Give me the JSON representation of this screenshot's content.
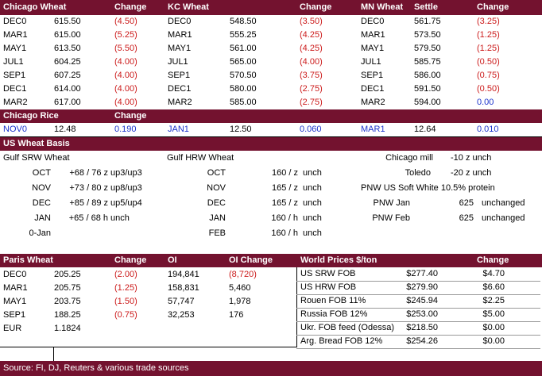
{
  "futures": {
    "headers": [
      "Chicago Wheat",
      "Change",
      "KC Wheat",
      "Change",
      "MN Wheat",
      "Settle",
      "Change"
    ],
    "rows": [
      {
        "cm": "DEC0",
        "cs": "615.50",
        "cc": "(4.50)",
        "km": "DEC0",
        "ks": "548.50",
        "kc": "(3.50)",
        "mm": "DEC0",
        "ms": "561.75",
        "mc": "(3.25)"
      },
      {
        "cm": "MAR1",
        "cs": "615.00",
        "cc": "(5.25)",
        "km": "MAR1",
        "ks": "555.25",
        "kc": "(4.25)",
        "mm": "MAR1",
        "ms": "573.50",
        "mc": "(1.25)"
      },
      {
        "cm": "MAY1",
        "cs": "613.50",
        "cc": "(5.50)",
        "km": "MAY1",
        "ks": "561.00",
        "kc": "(4.25)",
        "mm": "MAY1",
        "ms": "579.50",
        "mc": "(1.25)"
      },
      {
        "cm": "JUL1",
        "cs": "604.25",
        "cc": "(4.00)",
        "km": "JUL1",
        "ks": "565.00",
        "kc": "(4.00)",
        "mm": "JUL1",
        "ms": "585.75",
        "mc": "(0.50)"
      },
      {
        "cm": "SEP1",
        "cs": "607.25",
        "cc": "(4.00)",
        "km": "SEP1",
        "ks": "570.50",
        "kc": "(3.75)",
        "mm": "SEP1",
        "ms": "586.00",
        "mc": "(0.75)"
      },
      {
        "cm": "DEC1",
        "cs": "614.00",
        "cc": "(4.00)",
        "km": "DEC1",
        "ks": "580.00",
        "kc": "(2.75)",
        "mm": "DEC1",
        "ms": "591.50",
        "mc": "(0.50)"
      },
      {
        "cm": "MAR2",
        "cs": "617.00",
        "cc": "(4.00)",
        "km": "MAR2",
        "ks": "585.00",
        "kc": "(2.75)",
        "mm": "MAR2",
        "ms": "594.00",
        "mc": "0.00"
      }
    ]
  },
  "rice": {
    "title": "Chicago Rice",
    "change_header": "Change",
    "cells": [
      "NOV0",
      "12.48",
      "0.190",
      "JAN1",
      "12.50",
      "0.060",
      "MAR1",
      "12.64",
      "0.010"
    ]
  },
  "basis": {
    "title": "US Wheat Basis",
    "gulf_srw_title": "Gulf SRW Wheat",
    "gulf_hrw_title": "Gulf HRW Wheat",
    "srw": [
      {
        "month": "OCT",
        "value": "+68 / 76 z",
        "note": "up3/up3"
      },
      {
        "month": "NOV",
        "value": "+73 / 80 z",
        "note": "up8/up3"
      },
      {
        "month": "DEC",
        "value": "+85 / 89 z",
        "note": "up5/up4"
      },
      {
        "month": "JAN",
        "value": "+65 / 68 h",
        "note": "unch"
      },
      {
        "month": "0-Jan",
        "value": "",
        "note": ""
      }
    ],
    "hrw": [
      {
        "month": "OCT",
        "value": "160 / z",
        "note": "unch"
      },
      {
        "month": "NOV",
        "value": "165 / z",
        "note": "unch"
      },
      {
        "month": "DEC",
        "value": "165 / z",
        "note": "unch"
      },
      {
        "month": "JAN",
        "value": "160 / h",
        "note": "unch"
      },
      {
        "month": "FEB",
        "value": "160 / h",
        "note": "unch"
      }
    ],
    "chicago_mill_label": "Chicago mill",
    "chicago_mill_value": "-10 z unch",
    "toledo_label": "Toledo",
    "toledo_value": "-20 z unch",
    "pnw_title": "PNW US Soft White 10.5% protein",
    "pnw": [
      {
        "label": "PNW Jan",
        "value": "625",
        "note": "unchanged"
      },
      {
        "label": "PNW Feb",
        "value": "625",
        "note": "unchanged"
      }
    ]
  },
  "paris": {
    "headers": [
      "Paris Wheat",
      "Change",
      "OI",
      "OI Change"
    ],
    "rows": [
      {
        "m": "DEC0",
        "s": "205.25",
        "c": "(2.00)",
        "oi": "194,841",
        "oic": "(8,720)",
        "neg": true,
        "oineg": true
      },
      {
        "m": "MAR1",
        "s": "205.75",
        "c": "(1.25)",
        "oi": "158,831",
        "oic": "5,460",
        "neg": true,
        "oineg": false
      },
      {
        "m": "MAY1",
        "s": "203.75",
        "c": "(1.50)",
        "oi": "57,747",
        "oic": "1,978",
        "neg": true,
        "oineg": false
      },
      {
        "m": "SEP1",
        "s": "188.25",
        "c": "(0.75)",
        "oi": "32,253",
        "oic": "176",
        "neg": true,
        "oineg": false
      }
    ],
    "eur_label": "EUR",
    "eur_value": "1.1824"
  },
  "world": {
    "headers": [
      "World Prices $/ton",
      "Change"
    ],
    "rows": [
      {
        "n": "US SRW FOB",
        "p": "$277.40",
        "c": "$4.70"
      },
      {
        "n": "US HRW FOB",
        "p": "$279.90",
        "c": "$6.60"
      },
      {
        "n": "Rouen FOB 11%",
        "p": "$245.94",
        "c": "$2.25"
      },
      {
        "n": "Russia FOB 12%",
        "p": "$253.00",
        "c": "$5.00"
      },
      {
        "n": "Ukr. FOB feed (Odessa)",
        "p": "$218.50",
        "c": "$0.00"
      },
      {
        "n": "Arg. Bread FOB 12%",
        "p": "$254.26",
        "c": "$0.00"
      }
    ]
  },
  "footer": "Source: FI, DJ, Reuters & various trade sources",
  "colors": {
    "band": "#73122f",
    "negative": "#cc1b1b",
    "rice": "#1a33cc"
  }
}
